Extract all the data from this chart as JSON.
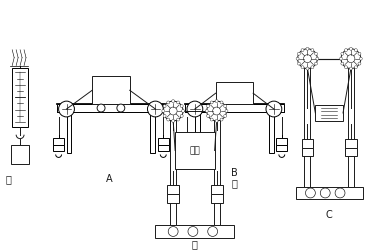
{
  "bg_color": "#ffffff",
  "line_color": "#1a1a1a",
  "fig_width": 3.72,
  "fig_height": 2.52,
  "dpi": 100,
  "labels": {
    "jia": "甲",
    "A": "A",
    "B": "B",
    "yi": "乙",
    "C": "C",
    "bing": "丙",
    "kapian": "卡片"
  }
}
